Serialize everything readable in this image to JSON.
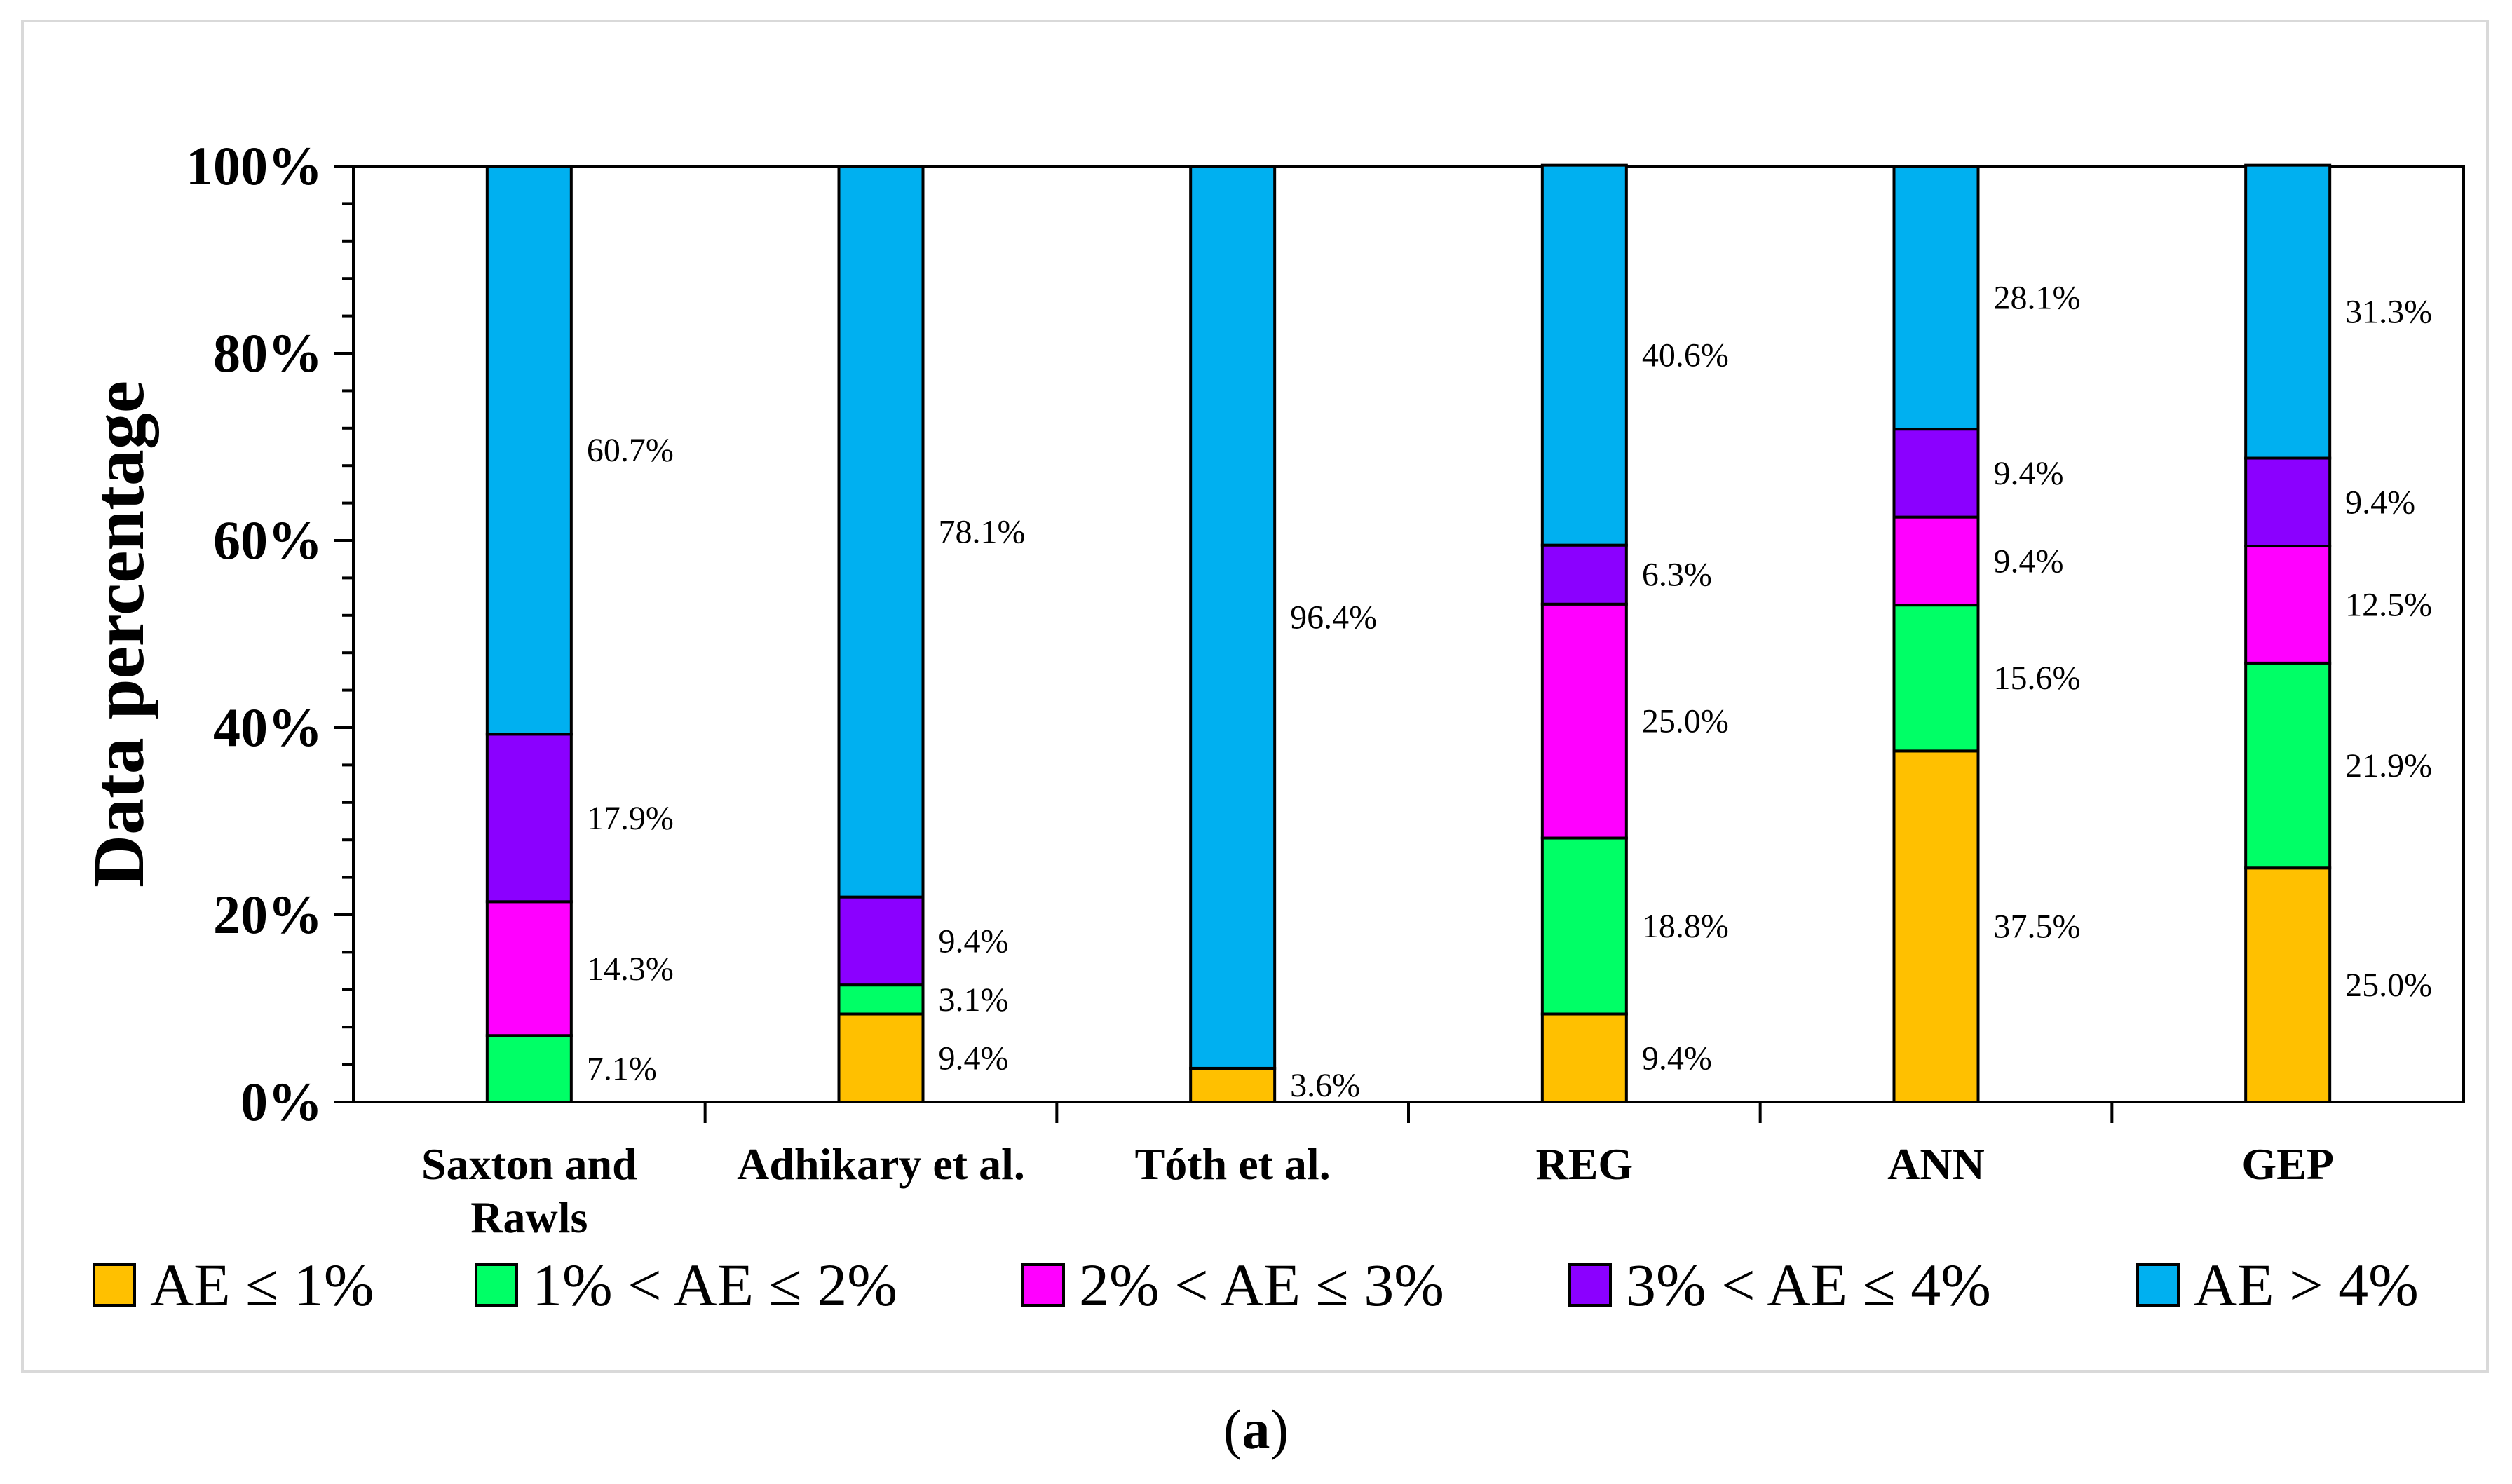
{
  "caption": {
    "open": "(",
    "letter": "a",
    "close": ")"
  },
  "chart_data": {
    "type": "bar",
    "stacked": true,
    "ylabel": "Data percentage",
    "xlabel": "",
    "ylim": [
      0,
      100
    ],
    "yticks": [
      "0%",
      "20%",
      "40%",
      "60%",
      "80%",
      "100%"
    ],
    "categories": [
      [
        "Saxton and",
        "Rawls"
      ],
      [
        "Adhikary et al."
      ],
      [
        "Tóth et al."
      ],
      [
        "REG"
      ],
      [
        "ANN"
      ],
      [
        "GEP"
      ]
    ],
    "series": [
      {
        "name": "AE ≤ 1%",
        "color": "#ffc000",
        "values": [
          0,
          9.4,
          3.6,
          9.4,
          37.5,
          25.0
        ],
        "labels": [
          "",
          "9.4%",
          "3.6%",
          "9.4%",
          "37.5%",
          "25.0%"
        ]
      },
      {
        "name": "1% < AE ≤ 2%",
        "color": "#00ff66",
        "values": [
          7.1,
          3.1,
          0,
          18.8,
          15.6,
          21.9
        ],
        "labels": [
          "7.1%",
          "3.1%",
          "",
          "18.8%",
          "15.6%",
          "21.9%"
        ]
      },
      {
        "name": "2% < AE ≤ 3%",
        "color": "#ff00ff",
        "values": [
          14.3,
          0,
          0,
          25.0,
          9.4,
          12.5
        ],
        "labels": [
          "14.3%",
          "",
          "",
          "25.0%",
          "9.4%",
          "12.5%"
        ]
      },
      {
        "name": "3% < AE ≤ 4%",
        "color": "#8b00ff",
        "values": [
          17.9,
          9.4,
          0,
          6.3,
          9.4,
          9.4
        ],
        "labels": [
          "17.9%",
          "9.4%",
          "",
          "6.3%",
          "9.4%",
          "9.4%"
        ]
      },
      {
        "name": "AE > 4%",
        "color": "#00b0f0",
        "values": [
          60.7,
          78.1,
          96.4,
          40.6,
          28.1,
          31.3
        ],
        "labels": [
          "60.7%",
          "78.1%",
          "96.4%",
          "40.6%",
          "28.1%",
          "31.3%"
        ]
      }
    ],
    "legend_position": "bottom"
  }
}
